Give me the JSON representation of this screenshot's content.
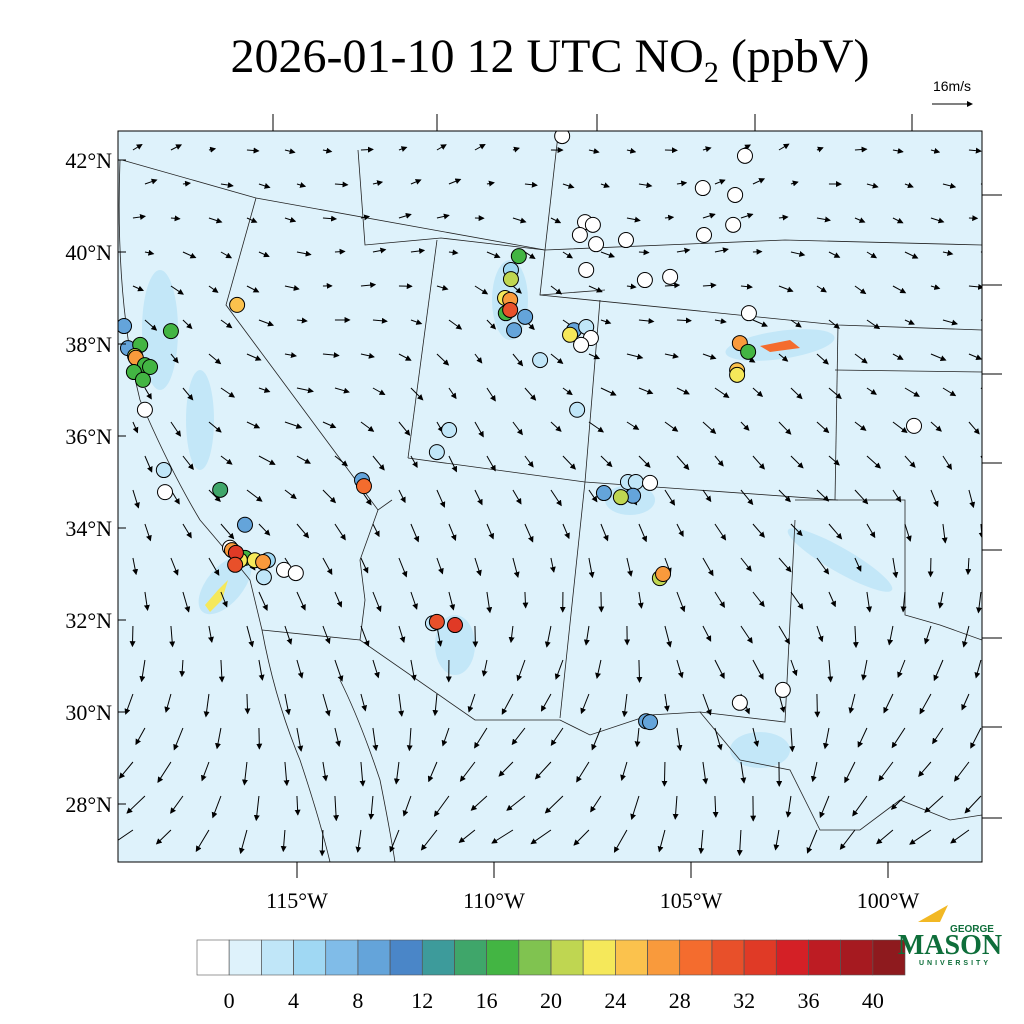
{
  "chart_data": {
    "type": "station-map",
    "title": {
      "prefix": "2026-01-10 12 UTC NO",
      "sub": "2",
      "suffix": " (ppbV)"
    },
    "wind_scale_label": "16m/s",
    "lat_ticks": [
      {
        "value": 42,
        "label": "42°N"
      },
      {
        "value": 40,
        "label": "40°N"
      },
      {
        "value": 38,
        "label": "38°N"
      },
      {
        "value": 36,
        "label": "36°N"
      },
      {
        "value": 34,
        "label": "34°N"
      },
      {
        "value": 32,
        "label": "32°N"
      },
      {
        "value": 30,
        "label": "30°N"
      },
      {
        "value": 28,
        "label": "28°N"
      }
    ],
    "lon_ticks": [
      {
        "value": -115,
        "label": "115°W"
      },
      {
        "value": -110,
        "label": "110°W"
      },
      {
        "value": -105,
        "label": "105°W"
      },
      {
        "value": -100,
        "label": "100°W"
      }
    ],
    "colorbar": {
      "levels": [
        0,
        2,
        4,
        6,
        8,
        10,
        12,
        14,
        16,
        18,
        20,
        22,
        24,
        26,
        28,
        30,
        32,
        34,
        36,
        38,
        40
      ],
      "ticks": [
        0,
        4,
        8,
        12,
        16,
        20,
        24,
        28,
        32,
        36,
        40
      ],
      "colors": [
        "#ffffff",
        "#def2fb",
        "#c0e6f8",
        "#a0d8f3",
        "#80bce8",
        "#64a4da",
        "#4a86c8",
        "#3d9b9b",
        "#3fa66a",
        "#43b543",
        "#80c350",
        "#bfd651",
        "#f5e85a",
        "#fbc24d",
        "#f99a3c",
        "#f46c2e",
        "#e8502a",
        "#e03a26",
        "#d42026",
        "#bd1c23",
        "#a61a20",
        "#8e1a1e"
      ]
    },
    "stations": [
      {
        "lon": -119.39,
        "lat": 38.39,
        "value": 9
      },
      {
        "lon": -119.29,
        "lat": 37.91,
        "value": 9
      },
      {
        "lon": -118.98,
        "lat": 37.98,
        "value": 17
      },
      {
        "lon": -119.11,
        "lat": 37.74,
        "value": 21
      },
      {
        "lon": -119.09,
        "lat": 37.7,
        "value": 27
      },
      {
        "lon": -118.86,
        "lat": 37.54,
        "value": 18
      },
      {
        "lon": -119.14,
        "lat": 37.39,
        "value": 18
      },
      {
        "lon": -118.73,
        "lat": 37.5,
        "value": 18
      },
      {
        "lon": -118.91,
        "lat": 37.22,
        "value": 17
      },
      {
        "lon": -118.2,
        "lat": 38.28,
        "value": 17
      },
      {
        "lon": -118.86,
        "lat": 36.57,
        "value": 0
      },
      {
        "lon": -118.38,
        "lat": 35.26,
        "value": 3
      },
      {
        "lon": -118.35,
        "lat": 34.78,
        "value": 0
      },
      {
        "lon": -116.95,
        "lat": 34.83,
        "value": 15
      },
      {
        "lon": -116.52,
        "lat": 38.85,
        "value": 26
      },
      {
        "lon": -116.32,
        "lat": 34.07,
        "value": 10
      },
      {
        "lon": -116.7,
        "lat": 33.57,
        "value": 0
      },
      {
        "lon": -115.74,
        "lat": 33.3,
        "value": 5
      },
      {
        "lon": -115.84,
        "lat": 32.93,
        "value": 3
      },
      {
        "lon": -115.33,
        "lat": 33.09,
        "value": 0
      },
      {
        "lon": -115.03,
        "lat": 33.02,
        "value": 0
      },
      {
        "lon": -116.32,
        "lat": 33.35,
        "value": 17
      },
      {
        "lon": -116.45,
        "lat": 33.3,
        "value": 23
      },
      {
        "lon": -116.07,
        "lat": 33.3,
        "value": 23
      },
      {
        "lon": -115.86,
        "lat": 33.26,
        "value": 27
      },
      {
        "lon": -116.65,
        "lat": 33.52,
        "value": 28
      },
      {
        "lon": -116.55,
        "lat": 33.46,
        "value": 33
      },
      {
        "lon": -116.57,
        "lat": 33.2,
        "value": 32
      },
      {
        "lon": -113.35,
        "lat": 35.04,
        "value": 10
      },
      {
        "lon": -113.3,
        "lat": 34.91,
        "value": 29
      },
      {
        "lon": -111.55,
        "lat": 31.93,
        "value": 4
      },
      {
        "lon": -111.45,
        "lat": 31.96,
        "value": 32
      },
      {
        "lon": -110.99,
        "lat": 31.89,
        "value": 33
      },
      {
        "lon": -111.14,
        "lat": 36.13,
        "value": 3
      },
      {
        "lon": -111.45,
        "lat": 35.65,
        "value": 3
      },
      {
        "lon": -109.37,
        "lat": 39.91,
        "value": 17
      },
      {
        "lon": -109.57,
        "lat": 39.61,
        "value": 5
      },
      {
        "lon": -109.57,
        "lat": 39.41,
        "value": 21
      },
      {
        "lon": -109.72,
        "lat": 39.0,
        "value": 23
      },
      {
        "lon": -109.59,
        "lat": 38.96,
        "value": 27
      },
      {
        "lon": -109.7,
        "lat": 38.67,
        "value": 18
      },
      {
        "lon": -109.59,
        "lat": 38.74,
        "value": 31
      },
      {
        "lon": -109.21,
        "lat": 38.59,
        "value": 10
      },
      {
        "lon": -109.49,
        "lat": 38.3,
        "value": 9
      },
      {
        "lon": -108.83,
        "lat": 37.65,
        "value": 3
      },
      {
        "lon": -108.27,
        "lat": 42.52,
        "value": 0
      },
      {
        "lon": -107.69,
        "lat": 40.65,
        "value": 0
      },
      {
        "lon": -107.49,
        "lat": 40.59,
        "value": 0
      },
      {
        "lon": -107.82,
        "lat": 40.37,
        "value": 0
      },
      {
        "lon": -107.41,
        "lat": 40.17,
        "value": 0
      },
      {
        "lon": -106.65,
        "lat": 40.26,
        "value": 0
      },
      {
        "lon": -107.66,
        "lat": 39.61,
        "value": 0
      },
      {
        "lon": -106.17,
        "lat": 39.39,
        "value": 0
      },
      {
        "lon": -105.53,
        "lat": 39.46,
        "value": 0
      },
      {
        "lon": -104.7,
        "lat": 41.39,
        "value": 0
      },
      {
        "lon": -103.88,
        "lat": 41.24,
        "value": 0
      },
      {
        "lon": -103.63,
        "lat": 42.09,
        "value": 0
      },
      {
        "lon": -103.93,
        "lat": 40.59,
        "value": 0
      },
      {
        "lon": -104.67,
        "lat": 40.37,
        "value": 0
      },
      {
        "lon": -107.97,
        "lat": 38.3,
        "value": 10
      },
      {
        "lon": -108.07,
        "lat": 38.2,
        "value": 23
      },
      {
        "lon": -107.66,
        "lat": 38.37,
        "value": 4
      },
      {
        "lon": -107.54,
        "lat": 38.13,
        "value": 0
      },
      {
        "lon": -107.79,
        "lat": 37.98,
        "value": 0
      },
      {
        "lon": -107.89,
        "lat": 36.57,
        "value": 3
      },
      {
        "lon": -103.53,
        "lat": 38.67,
        "value": 0
      },
      {
        "lon": -103.76,
        "lat": 38.02,
        "value": 28
      },
      {
        "lon": -103.55,
        "lat": 37.83,
        "value": 17
      },
      {
        "lon": -103.83,
        "lat": 37.43,
        "value": 26
      },
      {
        "lon": -103.83,
        "lat": 37.33,
        "value": 23
      },
      {
        "lon": -99.34,
        "lat": 36.22,
        "value": 0
      },
      {
        "lon": -107.21,
        "lat": 34.76,
        "value": 9
      },
      {
        "lon": -106.6,
        "lat": 35.0,
        "value": 3
      },
      {
        "lon": -106.4,
        "lat": 35.0,
        "value": 3
      },
      {
        "lon": -106.04,
        "lat": 34.98,
        "value": 0
      },
      {
        "lon": -106.47,
        "lat": 34.7,
        "value": 9
      },
      {
        "lon": -106.78,
        "lat": 34.67,
        "value": 21
      },
      {
        "lon": -105.79,
        "lat": 32.91,
        "value": 21
      },
      {
        "lon": -105.71,
        "lat": 33.0,
        "value": 28
      },
      {
        "lon": -103.76,
        "lat": 30.2,
        "value": 0
      },
      {
        "lon": -102.67,
        "lat": 30.48,
        "value": 0
      },
      {
        "lon": -106.14,
        "lat": 29.8,
        "value": 9
      },
      {
        "lon": -106.04,
        "lat": 29.78,
        "value": 9
      }
    ]
  },
  "logo": {
    "top": "GEORGE",
    "main": "MASON",
    "bottom": "UNIVERSITY"
  }
}
